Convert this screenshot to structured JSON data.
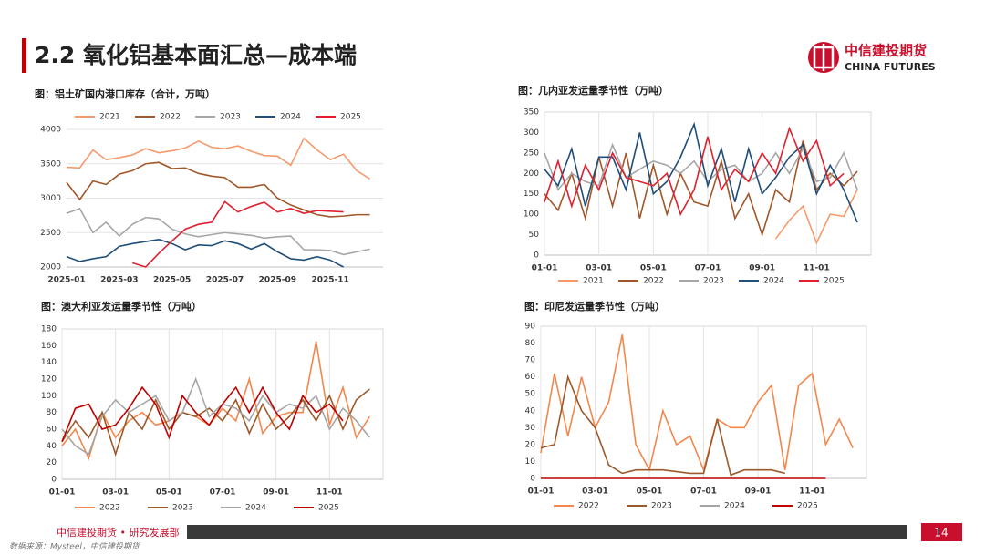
{
  "header": {
    "title": "2.2 氧化铝基本面汇总—成本端",
    "logo_cn": "中信建投期货",
    "logo_en": "CHINA FUTURES"
  },
  "footer": {
    "org": "中信建投期货 • 研究发展部",
    "page": 14,
    "source": "数据来源：Mysteel，中信建投期货"
  },
  "chart_data": [
    {
      "type": "line",
      "title": "图：铝土矿国内港口库存（合计，万吨）",
      "legend": "top",
      "grid": "y",
      "frame": false,
      "categories": [
        "2025-01",
        null,
        null,
        null,
        "2025-03",
        null,
        null,
        null,
        "2025-05",
        null,
        null,
        null,
        "2025-07",
        null,
        null,
        null,
        "2025-09",
        null,
        null,
        null,
        "2025-11",
        null,
        null,
        null
      ],
      "ylim": [
        2000,
        4000
      ],
      "yticks": [
        2000,
        2500,
        3000,
        3500,
        4000
      ],
      "series": [
        {
          "name": "2021",
          "color": "#f79a6b",
          "values": [
            3450,
            3440,
            3700,
            3560,
            3590,
            3630,
            3720,
            3660,
            3690,
            3730,
            3830,
            3740,
            3720,
            3760,
            3680,
            3620,
            3610,
            3480,
            3870,
            3700,
            3560,
            3640,
            3400,
            3280
          ]
        },
        {
          "name": "2022",
          "color": "#a0572a",
          "values": [
            3230,
            2980,
            3250,
            3200,
            3350,
            3400,
            3500,
            3520,
            3430,
            3440,
            3360,
            3320,
            3300,
            3160,
            3160,
            3200,
            3000,
            2900,
            2830,
            2760,
            2730,
            2740,
            2760,
            2760
          ]
        },
        {
          "name": "2023",
          "color": "#a6a6a6",
          "values": [
            2780,
            2850,
            2500,
            2650,
            2450,
            2620,
            2720,
            2700,
            2550,
            2480,
            2440,
            2470,
            2500,
            2480,
            2460,
            2420,
            2440,
            2450,
            2250,
            2250,
            2240,
            2180,
            2220,
            2260
          ]
        },
        {
          "name": "2024",
          "color": "#1f4e79",
          "values": [
            2150,
            2080,
            2120,
            2150,
            2300,
            2340,
            2370,
            2400,
            2340,
            2250,
            2320,
            2310,
            2380,
            2340,
            2260,
            2340,
            2220,
            2120,
            2100,
            2150,
            2100,
            2000,
            null,
            null
          ]
        },
        {
          "name": "2025",
          "color": "#e0202f",
          "values": [
            null,
            null,
            null,
            null,
            null,
            2060,
            2000,
            2200,
            2380,
            2550,
            2620,
            2650,
            2950,
            2800,
            2880,
            2940,
            2800,
            2850,
            2780,
            2820,
            2810,
            2800,
            null,
            null
          ]
        }
      ]
    },
    {
      "type": "line",
      "title": "图：几内亚发运量季节性（万吨）",
      "legend": "bottom",
      "grid": "x",
      "frame": true,
      "categories": [
        "01-01",
        null,
        null,
        null,
        "03-01",
        null,
        null,
        null,
        "05-01",
        null,
        null,
        null,
        "07-01",
        null,
        null,
        null,
        "09-01",
        null,
        null,
        null,
        "11-01",
        null,
        null,
        null
      ],
      "ylim": [
        0,
        350
      ],
      "yticks": [
        0,
        50,
        100,
        150,
        200,
        250,
        300,
        350
      ],
      "series": [
        {
          "name": "2021",
          "color": "#f79a6b",
          "values": [
            null,
            null,
            null,
            null,
            null,
            null,
            null,
            null,
            null,
            null,
            null,
            null,
            null,
            null,
            null,
            null,
            null,
            40,
            85,
            120,
            30,
            100,
            95,
            160
          ]
        },
        {
          "name": "2022",
          "color": "#a0572a",
          "values": [
            150,
            110,
            200,
            90,
            240,
            120,
            250,
            90,
            220,
            100,
            200,
            130,
            120,
            230,
            90,
            150,
            50,
            160,
            130,
            280,
            160,
            200,
            170,
            205
          ]
        },
        {
          "name": "2023",
          "color": "#a6a6a6",
          "values": [
            250,
            160,
            200,
            180,
            170,
            270,
            190,
            210,
            230,
            220,
            200,
            230,
            180,
            210,
            220,
            180,
            200,
            250,
            200,
            260,
            180,
            190,
            250,
            160
          ]
        },
        {
          "name": "2024",
          "color": "#1f4e79",
          "values": [
            210,
            170,
            260,
            120,
            240,
            240,
            160,
            300,
            150,
            180,
            240,
            320,
            170,
            260,
            130,
            260,
            150,
            190,
            240,
            270,
            150,
            220,
            160,
            80
          ]
        },
        {
          "name": "2025",
          "color": "#e0202f",
          "values": [
            130,
            230,
            120,
            220,
            160,
            250,
            190,
            180,
            170,
            200,
            100,
            160,
            290,
            160,
            210,
            180,
            250,
            200,
            310,
            230,
            280,
            170,
            200,
            null
          ]
        }
      ]
    },
    {
      "type": "line",
      "title": "图：澳大利亚发运量季节性（万吨）",
      "legend": "bottom",
      "grid": "x",
      "frame": true,
      "categories": [
        "01-01",
        null,
        null,
        null,
        "03-01",
        null,
        null,
        null,
        "05-01",
        null,
        null,
        null,
        "07-01",
        null,
        null,
        null,
        "09-01",
        null,
        null,
        null,
        "11-01",
        null,
        null,
        null
      ],
      "ylim": [
        0,
        180
      ],
      "yticks": [
        0,
        20,
        40,
        60,
        80,
        100,
        120,
        140,
        160,
        180
      ],
      "series": [
        {
          "name": "2022",
          "color": "#f4874b",
          "values": [
            40,
            60,
            25,
            80,
            50,
            70,
            80,
            65,
            70,
            80,
            75,
            65,
            85,
            70,
            120,
            55,
            75,
            80,
            80,
            165,
            65,
            110,
            50,
            75
          ]
        },
        {
          "name": "2023",
          "color": "#9c5a2a",
          "values": [
            45,
            70,
            50,
            80,
            30,
            80,
            60,
            95,
            60,
            80,
            75,
            85,
            70,
            95,
            55,
            90,
            60,
            75,
            95,
            70,
            100,
            60,
            95,
            108
          ]
        },
        {
          "name": "2024",
          "color": "#a6a6a6",
          "values": [
            60,
            40,
            30,
            75,
            95,
            80,
            90,
            100,
            70,
            80,
            120,
            75,
            90,
            85,
            70,
            100,
            80,
            90,
            85,
            100,
            60,
            85,
            70,
            50
          ]
        },
        {
          "name": "2025",
          "color": "#c00000",
          "values": [
            45,
            85,
            90,
            60,
            65,
            85,
            110,
            90,
            50,
            100,
            80,
            65,
            90,
            110,
            80,
            110,
            80,
            60,
            100,
            80,
            90,
            70,
            null,
            null
          ]
        }
      ]
    },
    {
      "type": "line",
      "title": "图：印尼发运量季节性（万吨）",
      "legend": "bottom",
      "grid": "x",
      "frame": true,
      "categories": [
        "01-01",
        null,
        null,
        null,
        "03-01",
        null,
        null,
        null,
        "05-01",
        null,
        null,
        null,
        "07-01",
        null,
        null,
        null,
        "09-01",
        null,
        null,
        null,
        "11-01",
        null,
        null,
        null
      ],
      "ylim": [
        0,
        90
      ],
      "yticks": [
        0,
        10,
        20,
        30,
        40,
        50,
        60,
        70,
        80,
        90
      ],
      "series": [
        {
          "name": "2022",
          "color": "#f4874b",
          "values": [
            15,
            62,
            25,
            60,
            30,
            45,
            85,
            20,
            5,
            40,
            20,
            25,
            5,
            35,
            30,
            30,
            45,
            55,
            5,
            55,
            62,
            20,
            35,
            18
          ]
        },
        {
          "name": "2023",
          "color": "#9c5a2a",
          "values": [
            18,
            20,
            60,
            40,
            30,
            8,
            3,
            5,
            5,
            5,
            4,
            3,
            3,
            35,
            2,
            5,
            5,
            5,
            3,
            null,
            null,
            null,
            null,
            null
          ]
        },
        {
          "name": "2024",
          "color": "#a6a6a6",
          "values": [
            null,
            null,
            null,
            null,
            null,
            null,
            null,
            null,
            null,
            null,
            null,
            null,
            null,
            null,
            null,
            null,
            null,
            null,
            null,
            null,
            null,
            null,
            null,
            null
          ]
        },
        {
          "name": "2025",
          "color": "#c00000",
          "values": [
            0,
            0,
            0,
            0,
            0,
            0,
            0,
            0,
            0,
            0,
            0,
            0,
            0,
            0,
            0,
            0,
            0,
            0,
            0,
            0,
            0,
            0,
            null,
            null
          ]
        }
      ]
    }
  ]
}
